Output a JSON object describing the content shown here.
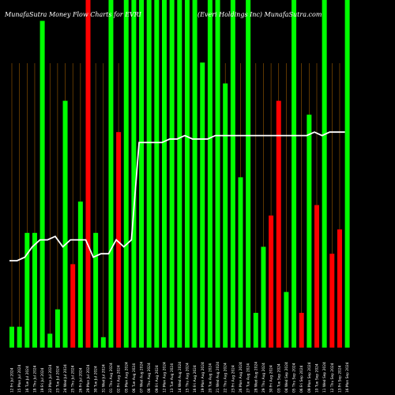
{
  "header": {
    "left": "MunafaSutra  Money  Flow  Charts for EVRI",
    "right": "(Everi Holdings Inc)  MunafaSutra.com"
  },
  "chart_data": {
    "type": "bar",
    "title": "MunafaSutra Money Flow Charts for EVRI",
    "subtitle": "(Everi Holdings Inc) MunafaSutra.com",
    "ylim": [
      0,
      100
    ],
    "categories": [
      "12 Fri Jul 2024",
      "15 Mon Jul 2024",
      "16 Tue Jul 2024",
      "18 Thu Jul 2024",
      "19 Fri Jul 2024",
      "22 Mon Jul 2024",
      "23 Tue Jul 2024",
      "24 Wed Jul 2024",
      "25 Thu Jul 2024",
      "26 Fri Jul 2024",
      "29 Mon Jul 2024",
      "30 Tue Jul 2024",
      "31 Wed Jul 2024",
      "01 Thu Aug 2024",
      "02 Fri Aug 2024",
      "05 Mon Aug 2024",
      "06 Tue Aug 2024",
      "07 Wed Aug 2024",
      "08 Thu Aug 2024",
      "09 Fri Aug 2024",
      "12 Mon Aug 2024",
      "13 Tue Aug 2024",
      "14 Wed Aug 2024",
      "15 Thu Aug 2024",
      "16 Fri Aug 2024",
      "19 Mon Aug 2024",
      "20 Tue Aug 2024",
      "21 Wed Aug 2024",
      "22 Thu Aug 2024",
      "23 Fri Aug 2024",
      "26 Mon Aug 2024",
      "27 Tue Aug 2024",
      "28 Wed Aug 2024",
      "29 Thu Aug 2024",
      "30 Fri Aug 2024",
      "03 Tue Sep 2024",
      "04 Wed Sep 2024",
      "05 Thu Sep 2024",
      "06 Fri Sep 2024",
      "09 Mon Sep 2024",
      "10 Tue Sep 2024",
      "11 Wed Sep 2024",
      "12 Thu Sep 2024",
      "13 Fri Sep 2024",
      "16 Mon Sep 2024"
    ],
    "tick_labels": [
      "12 Fri Jul 2024",
      "15 Mon Jul 2024",
      "16 Tue Jul 2024",
      "18 Thu Jul 2024",
      "19 Fri Jul 2024",
      "22 Mon Jul 2024",
      "23 Tue Jul 2024",
      "24 Wed Jul 2024",
      "25 Thu Jul 2024",
      "26 Fri Jul 2024",
      "29 Mon Jul 2024",
      "30 Tue Jul 2024",
      "31 Wed Jul 2024",
      "01 Thu Aug 2024",
      "02 Fri Aug 2024",
      "05 Mon Aug 2024",
      "06 Tue Aug 2024",
      "07 Wed Aug 2024",
      "08 Thu Aug 2024",
      "09 Fri Aug 2024",
      "12 Mon Aug 2024",
      "13 Tue Aug 2024",
      "14 Wed Aug 2024",
      "15 Thu Aug 2024",
      "16 Fri Aug 2024",
      "19 Mon Aug 2024",
      "20 Tue Aug 2024",
      "21 Wed Aug 2024",
      "22 Thu Aug 2024",
      "23 Fri Aug 2024",
      "26 Mon Aug 2024",
      "27 Tue Aug 2024",
      "28 Wed Aug 2024",
      "29 Thu Aug 2024",
      "30 Fri Aug 2024",
      "03 Tue Sep 2024",
      "04 Wed Sep 2024",
      "05 Thu Sep 2024",
      "06 Fri Sep 2024",
      "09 Mon Sep 2024",
      "10 Tue Sep 2024",
      "11 Wed Sep 2024",
      "12 Thu Sep 2024",
      "13 Fri Sep 2024",
      "16 Mon Sep 2024"
    ],
    "bars": [
      {
        "value": 6,
        "color": "green"
      },
      {
        "value": 6,
        "color": "green"
      },
      {
        "value": 33,
        "color": "green"
      },
      {
        "value": 33,
        "color": "green"
      },
      {
        "value": 94,
        "color": "green"
      },
      {
        "value": 4,
        "color": "green"
      },
      {
        "value": 11,
        "color": "green"
      },
      {
        "value": 71,
        "color": "green"
      },
      {
        "value": 24,
        "color": "red"
      },
      {
        "value": 42,
        "color": "green"
      },
      {
        "value": 100,
        "color": "red"
      },
      {
        "value": 33,
        "color": "green"
      },
      {
        "value": 3,
        "color": "green"
      },
      {
        "value": 100,
        "color": "green"
      },
      {
        "value": 62,
        "color": "red"
      },
      {
        "value": 100,
        "color": "green"
      },
      {
        "value": 100,
        "color": "green"
      },
      {
        "value": 100,
        "color": "green"
      },
      {
        "value": 100,
        "color": "green"
      },
      {
        "value": 100,
        "color": "green"
      },
      {
        "value": 100,
        "color": "green"
      },
      {
        "value": 100,
        "color": "green"
      },
      {
        "value": 100,
        "color": "green"
      },
      {
        "value": 100,
        "color": "green"
      },
      {
        "value": 100,
        "color": "green"
      },
      {
        "value": 82,
        "color": "green"
      },
      {
        "value": 100,
        "color": "green"
      },
      {
        "value": 100,
        "color": "green"
      },
      {
        "value": 76,
        "color": "green"
      },
      {
        "value": 100,
        "color": "green"
      },
      {
        "value": 49,
        "color": "green"
      },
      {
        "value": 100,
        "color": "green"
      },
      {
        "value": 10,
        "color": "green"
      },
      {
        "value": 29,
        "color": "green"
      },
      {
        "value": 38,
        "color": "red"
      },
      {
        "value": 71,
        "color": "red"
      },
      {
        "value": 16,
        "color": "green"
      },
      {
        "value": 100,
        "color": "green"
      },
      {
        "value": 10,
        "color": "red"
      },
      {
        "value": 67,
        "color": "green"
      },
      {
        "value": 41,
        "color": "red"
      },
      {
        "value": 100,
        "color": "green"
      },
      {
        "value": 27,
        "color": "red"
      },
      {
        "value": 34,
        "color": "red"
      },
      {
        "value": 100,
        "color": "green"
      }
    ],
    "line": [
      25,
      25,
      26,
      29,
      31,
      31,
      32,
      29,
      31,
      31,
      31,
      26,
      27,
      27,
      31,
      29,
      31,
      59,
      59,
      59,
      59,
      60,
      60,
      61,
      60,
      60,
      60,
      61,
      61,
      61,
      61,
      61,
      61,
      61,
      61,
      61,
      61,
      61,
      61,
      61,
      62,
      61,
      62,
      62,
      62
    ],
    "colors": {
      "green": "#00ff00",
      "red": "#ff0000",
      "line": "#ffffff",
      "grid": "#9a5a00",
      "background": "#000000"
    },
    "grid": true
  }
}
